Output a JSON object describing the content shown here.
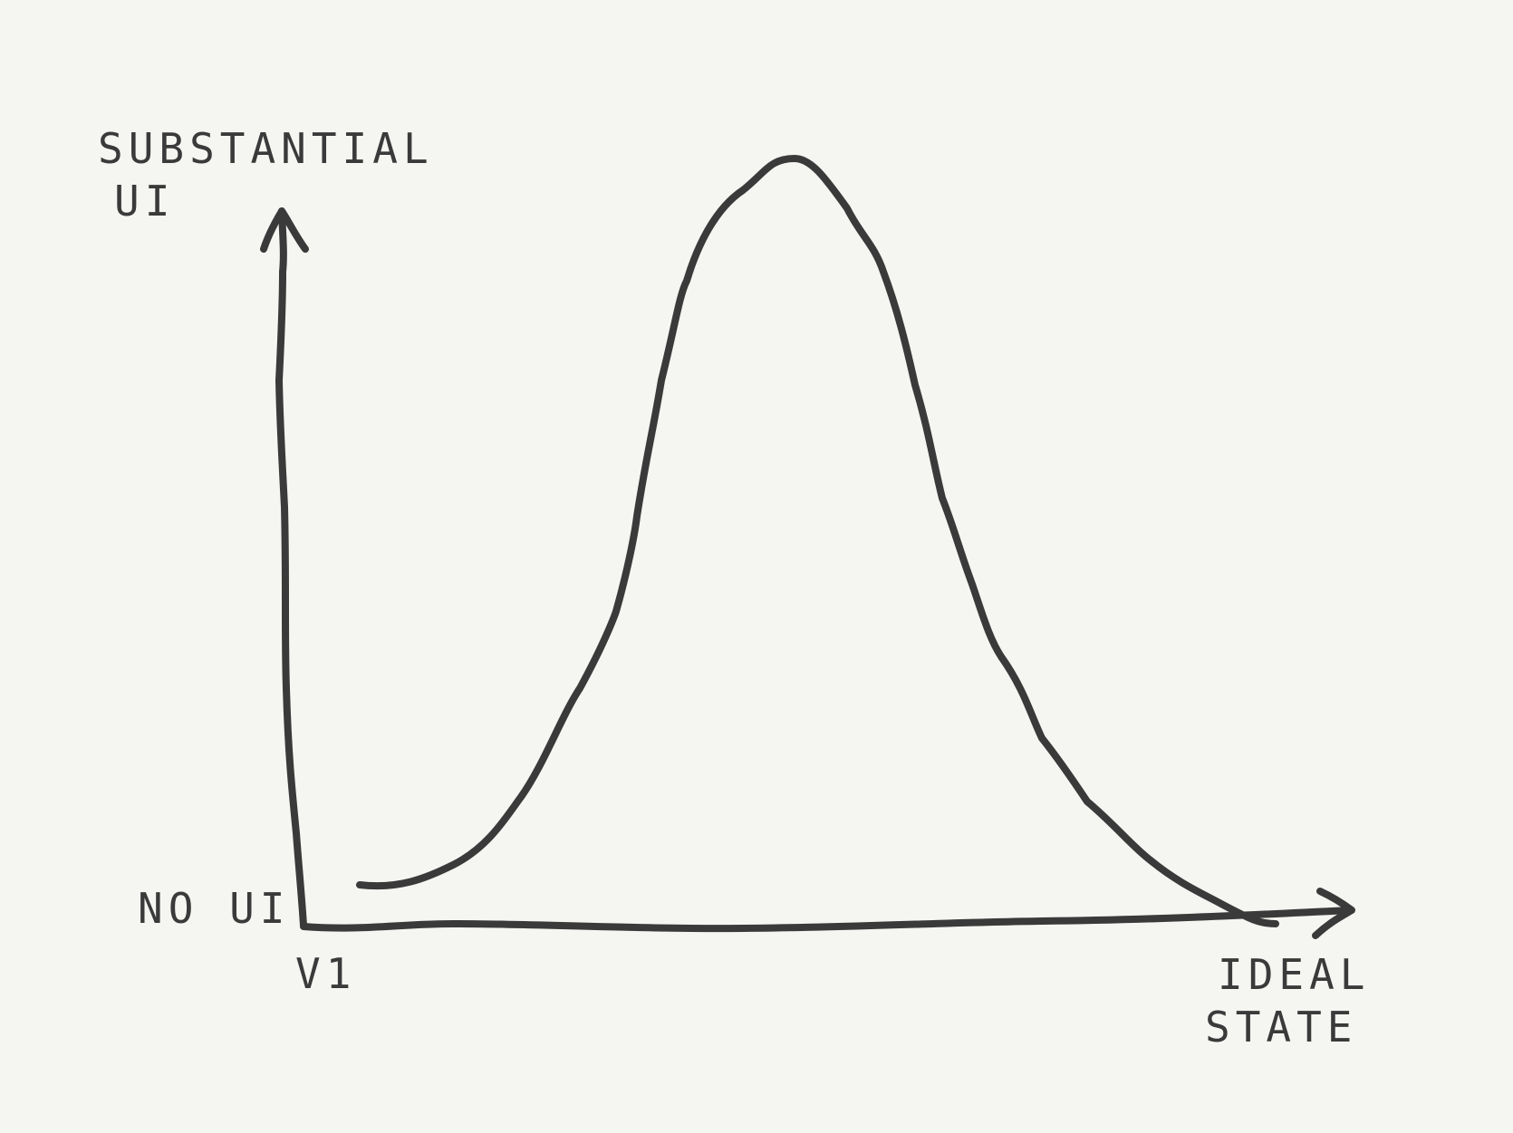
{
  "diagram": {
    "y_axis": {
      "top_label_line1": "SUBSTANTIAL",
      "top_label_line2": "UI",
      "bottom_label": "NO UI"
    },
    "x_axis": {
      "start_label": "V1",
      "end_label_line1": "IDEAL",
      "end_label_line2": "STATE"
    },
    "curve": {
      "shape": "bell-shaped hump rising from near no UI to a peak of substantial UI, then falling back toward no UI at the ideal state"
    },
    "colors": {
      "background": "#f5f5f2",
      "ink": "#3a3a3a"
    }
  }
}
